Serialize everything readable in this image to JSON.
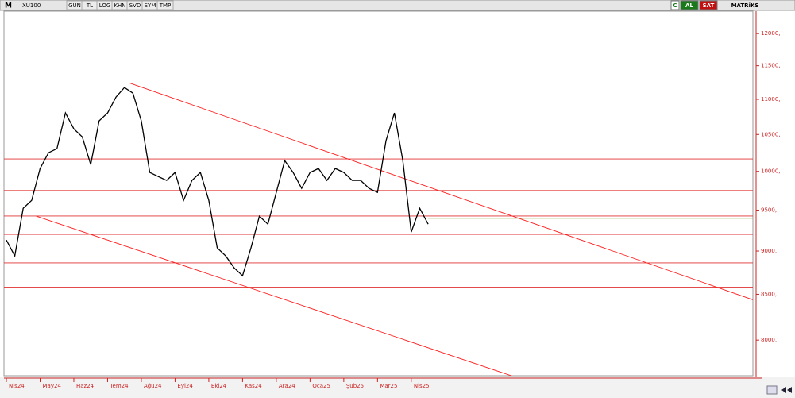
{
  "toolbar": {
    "symbol": "XU100",
    "buttons": [
      "GUN",
      "TL",
      "LOG",
      "KHN",
      "SVD",
      "SYM",
      "TMP"
    ],
    "right_buttons": [
      "C",
      "AL",
      "SAT"
    ],
    "brand": "MATRiKS"
  },
  "chart_data": {
    "type": "line",
    "log_scale": true,
    "grid": false,
    "categories": [
      "Nis24",
      null,
      null,
      null,
      "May24",
      null,
      null,
      null,
      "Haz24",
      null,
      null,
      null,
      "Tem24",
      null,
      null,
      null,
      "Ağu24",
      null,
      null,
      null,
      "Eyl24",
      null,
      null,
      null,
      "Eki24",
      null,
      null,
      null,
      "Kas24",
      null,
      null,
      null,
      "Ara24",
      null,
      null,
      null,
      "Oca25",
      null,
      null,
      null,
      "Şub25",
      null,
      null,
      null,
      "Mar25",
      null,
      null,
      null,
      "Nis25",
      null,
      null
    ],
    "xlim": [
      0,
      88.5
    ],
    "series": [
      {
        "name": "XU100",
        "color": "#000000",
        "values": [
          9132,
          8942,
          9524,
          9624,
          10038,
          10250,
          10305,
          10804,
          10578,
          10467,
          10091,
          10691,
          10804,
          11033,
          11173,
          11090,
          10691,
          9985,
          9932,
          9881,
          9985,
          9624,
          9881,
          9985,
          9624,
          9037,
          8942,
          8802,
          8711,
          9037,
          9425,
          9326,
          9726,
          10144,
          9985,
          9778,
          9985,
          10038,
          9881,
          10038,
          9985,
          9881,
          9881,
          9778,
          9726,
          10413,
          10804,
          10144,
          9229,
          9524,
          9326
        ]
      }
    ],
    "ylim": [
      7640,
      12360
    ],
    "yticks": [
      {
        "value": 12000,
        "label": "12000,"
      },
      {
        "value": 11500,
        "label": "11500,"
      },
      {
        "value": 11000,
        "label": "11000,"
      },
      {
        "value": 10500,
        "label": "10500,"
      },
      {
        "value": 10000,
        "label": "10000,"
      },
      {
        "value": 9500,
        "label": "9500,"
      },
      {
        "value": 9000,
        "label": "9000,"
      },
      {
        "value": 8500,
        "label": "8500,"
      },
      {
        "value": 8000,
        "label": "8000,"
      }
    ],
    "levels": [
      10166,
      9750,
      9427,
      9200,
      8860,
      8580
    ],
    "level_color": "#e03030",
    "signal_line": {
      "start": 50,
      "value": 9400,
      "color": "#8db040"
    },
    "trend_lines": [
      {
        "from": [
          14.5,
          11244
        ],
        "to": [
          88.7,
          8432
        ]
      },
      {
        "from": [
          3.5,
          9427
        ],
        "to": [
          60,
          7628
        ]
      }
    ],
    "trend_color": "#ff2020",
    "axis_color": "#cc2222"
  }
}
